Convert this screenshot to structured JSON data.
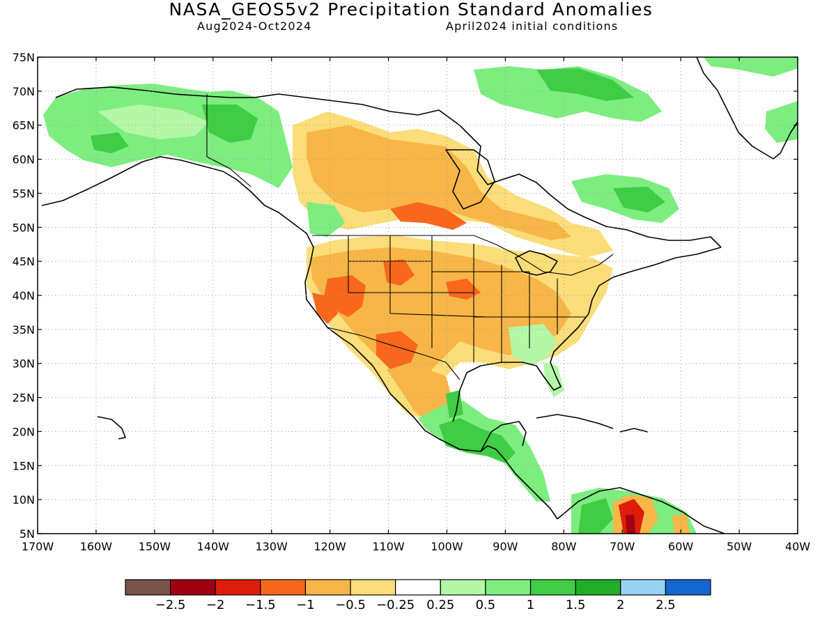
{
  "header": {
    "title": "NASA_GEOS5v2 Precipitation Standard Anomalies",
    "period": "Aug2024-Oct2024",
    "init": "April2024 initial conditions"
  },
  "map": {
    "projection": "cylindrical-equidistant",
    "lon_range": [
      -170,
      -40
    ],
    "lat_range": [
      5,
      75
    ],
    "grid": "dotted",
    "lat_labels": [
      "5N",
      "10N",
      "15N",
      "20N",
      "25N",
      "30N",
      "35N",
      "40N",
      "45N",
      "50N",
      "55N",
      "60N",
      "65N",
      "70N",
      "75N"
    ],
    "lon_labels": [
      "170W",
      "160W",
      "150W",
      "140W",
      "130W",
      "120W",
      "110W",
      "100W",
      "90W",
      "80W",
      "70W",
      "60W",
      "50W",
      "40W"
    ],
    "palette": {
      "dry3": "#7a5448",
      "dry25": "#a0000f",
      "dry2": "#dd1d0a",
      "dry15": "#f8671c",
      "dry1": "#f7b647",
      "dry05": "#fbdd79",
      "neutral": "#ffffff",
      "wet025": "#b3f7a7",
      "wet05": "#7ded80",
      "wet1": "#3fcd45",
      "wet15": "#22ad29",
      "wet2": "#97d3f5",
      "wet25": "#1467d1"
    }
  },
  "colorbar": {
    "colors": [
      "#7a5448",
      "#a0000f",
      "#dd1d0a",
      "#f8671c",
      "#f7b647",
      "#fbdd79",
      "#ffffff",
      "#b3f7a7",
      "#7ded80",
      "#3fcd45",
      "#22ad29",
      "#97d3f5",
      "#1467d1"
    ],
    "labels": [
      "-2.5",
      "-2",
      "-1.5",
      "-1",
      "-0.5",
      "-0.25",
      "0.25",
      "0.5",
      "1",
      "1.5",
      "2",
      "2.5"
    ]
  }
}
